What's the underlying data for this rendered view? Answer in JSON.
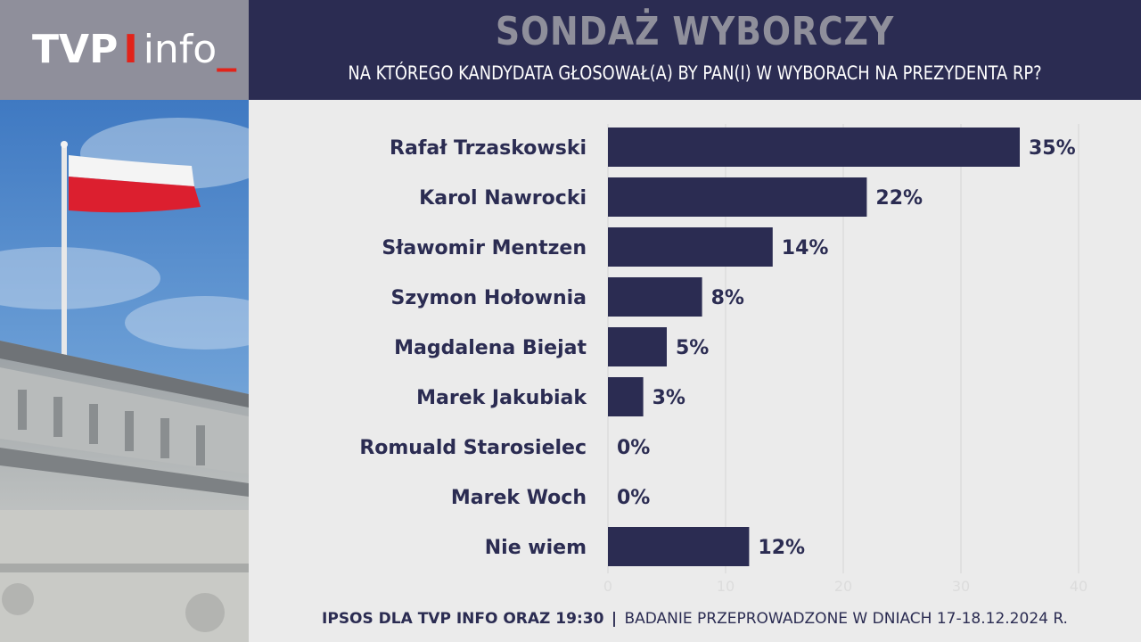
{
  "logo": {
    "brand": "TVP",
    "separator": "I",
    "suffix": "info",
    "cursor": "_"
  },
  "header": {
    "title": "SONDAŻ WYBORCZY",
    "subtitle": "NA KTÓREGO KANDYDATA GŁOSOWAŁ(A) BY PAN(I) W WYBORACH NA PREZYDENTA RP?"
  },
  "colors": {
    "bar": "#2b2c52",
    "header_band": "#2b2c52",
    "logo_box": "#8f8f9b",
    "accent_red": "#e2231a",
    "background": "#ebebeb"
  },
  "photo": {
    "description_icon": "polish-flag-on-building-photo"
  },
  "chart_data": {
    "type": "bar",
    "orientation": "horizontal",
    "categories": [
      "Rafał Trzaskowski",
      "Karol Nawrocki",
      "Sławomir Mentzen",
      "Szymon Hołownia",
      "Magdalena Biejat",
      "Marek Jakubiak",
      "Romuald Starosielec",
      "Marek Woch",
      "Nie wiem"
    ],
    "values": [
      35,
      22,
      14,
      8,
      5,
      3,
      0,
      0,
      12
    ],
    "value_labels": [
      "35%",
      "22%",
      "14%",
      "8%",
      "5%",
      "3%",
      "0%",
      "0%",
      "12%"
    ],
    "xlim": [
      0,
      40
    ],
    "xticks": [
      "0",
      "10",
      "20",
      "30",
      "40"
    ],
    "xtick_values": [
      0,
      10,
      20,
      30,
      40
    ],
    "grid": true
  },
  "footer": {
    "source": "IPSOS DLA TVP INFO ORAZ 19:30",
    "separator": "|",
    "note": "BADANIE PRZEPROWADZONE W DNIACH 17-18.12.2024 R."
  }
}
